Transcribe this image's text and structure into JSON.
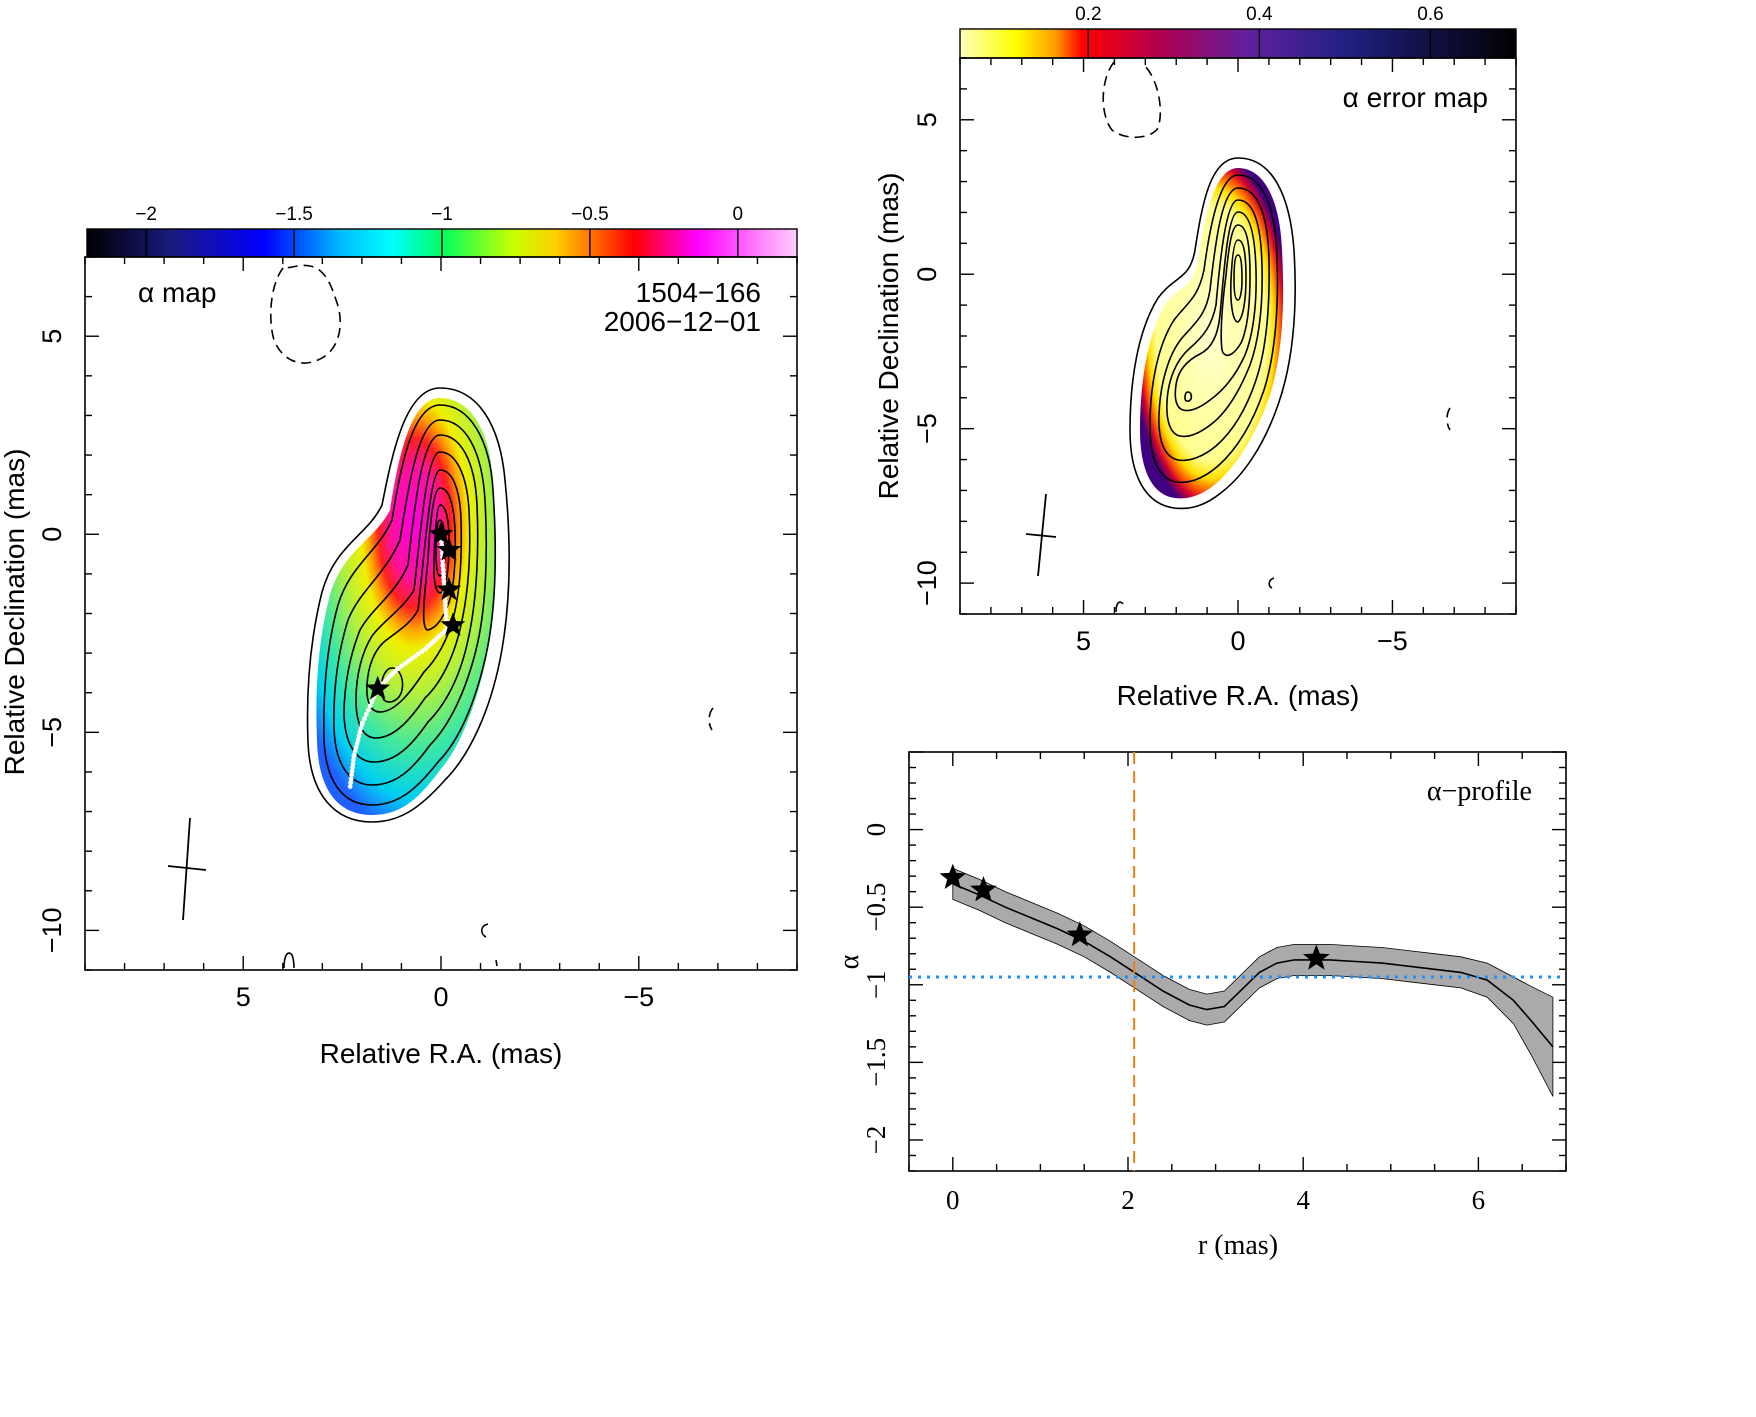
{
  "chart_data": [
    {
      "type": "heatmap",
      "panel": "alpha map",
      "title": "α map",
      "source": "1504−166",
      "date": "2006−12−01",
      "xlabel": "Relative R.A. (mas)",
      "ylabel": "Relative Declination (mas)",
      "xlim": [
        9,
        -9
      ],
      "ylim": [
        -11,
        7
      ],
      "xticks": [
        "5",
        "0",
        "−5"
      ],
      "yticks": [
        "5",
        "0",
        "−5",
        "−10"
      ],
      "colorbar": {
        "ticks": [
          "−2",
          "−1.5",
          "−1",
          "−0.5",
          "0"
        ],
        "range": [
          -2.2,
          0.2
        ]
      },
      "ridge_stars": [
        [
          0.0,
          0.0
        ],
        [
          -0.2,
          -0.4
        ],
        [
          -0.2,
          -1.4
        ],
        [
          -0.3,
          -2.3
        ],
        [
          1.6,
          -3.9
        ]
      ],
      "colors": {
        "core": "#ff00cc",
        "jet": "#c8f040",
        "edge": "#00d0f0"
      }
    },
    {
      "type": "heatmap",
      "panel": "alpha error map",
      "title": "α error map",
      "xlabel": "Relative R.A. (mas)",
      "ylabel": "Relative Declination (mas)",
      "xlim": [
        9,
        -9
      ],
      "ylim": [
        -11,
        7
      ],
      "xticks": [
        "5",
        "0",
        "−5"
      ],
      "yticks": [
        "5",
        "0",
        "−5",
        "−10"
      ],
      "colorbar": {
        "ticks": [
          "0.2",
          "0.4",
          "0.6"
        ],
        "range": [
          0.05,
          0.7
        ]
      }
    },
    {
      "type": "line",
      "panel": "alpha profile",
      "title": "α−profile",
      "xlabel": "r (mas)",
      "ylabel": "α",
      "xlim": [
        -0.5,
        7.0
      ],
      "ylim": [
        -2.2,
        0.5
      ],
      "xticks": [
        "0",
        "2",
        "4",
        "6"
      ],
      "yticks": [
        "0",
        "−0.5",
        "−1",
        "−1.5",
        "−2"
      ],
      "x": [
        0,
        0.3,
        0.6,
        0.9,
        1.2,
        1.5,
        1.8,
        2.1,
        2.4,
        2.7,
        2.9,
        3.1,
        3.3,
        3.5,
        3.7,
        3.9,
        4.1,
        4.3,
        4.6,
        4.9,
        5.2,
        5.5,
        5.8,
        6.1,
        6.4,
        6.6,
        6.85
      ],
      "y": [
        -0.35,
        -0.42,
        -0.5,
        -0.57,
        -0.64,
        -0.72,
        -0.82,
        -0.93,
        -1.04,
        -1.13,
        -1.16,
        -1.14,
        -1.03,
        -0.92,
        -0.86,
        -0.84,
        -0.84,
        -0.84,
        -0.85,
        -0.86,
        -0.88,
        -0.9,
        -0.92,
        -0.97,
        -1.1,
        -1.23,
        -1.4
      ],
      "err": [
        0.1,
        0.1,
        0.1,
        0.1,
        0.1,
        0.1,
        0.1,
        0.1,
        0.1,
        0.1,
        0.1,
        0.1,
        0.1,
        0.1,
        0.1,
        0.1,
        0.1,
        0.1,
        0.1,
        0.1,
        0.1,
        0.1,
        0.1,
        0.11,
        0.15,
        0.22,
        0.32
      ],
      "stars": [
        [
          0.0,
          -0.31
        ],
        [
          0.35,
          -0.39
        ],
        [
          1.45,
          -0.68
        ],
        [
          4.15,
          -0.83
        ]
      ],
      "vline": 2.07,
      "hline": -0.95,
      "colors": {
        "band": "#aaaaaa",
        "vline": "#e8801a",
        "hline": "#1e90ff"
      }
    }
  ]
}
